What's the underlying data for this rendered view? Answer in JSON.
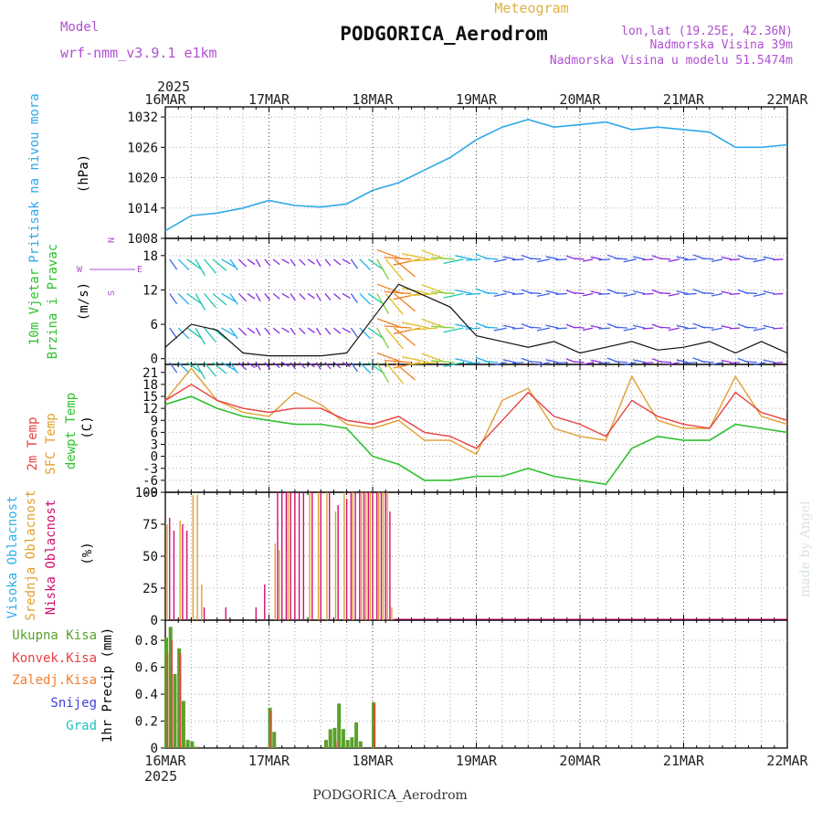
{
  "header": {
    "model_label": "Model",
    "model_name": "wrf-nmm_v3.9.1 e1km",
    "meteogram_label": "Meteogram",
    "station": "PODGORICA_Aerodrom",
    "lonlat": "lon,lat (19.25E, 42.36N)",
    "altitude": "Nadmorska Visina 39m",
    "model_altitude": "Nadmorska Visina u modelu 51.5474m",
    "footer_station": "PODGORICA_Aerodrom",
    "watermark": "made by Angel",
    "year": "2025"
  },
  "dates": [
    "16MAR",
    "17MAR",
    "18MAR",
    "19MAR",
    "20MAR",
    "21MAR",
    "22MAR"
  ],
  "colors": {
    "pressure": "#2fa8e8",
    "temp2m": "#e84040",
    "sfctemp": "#e0a030",
    "dewpt": "#30c030",
    "high_cloud": "#30b0e8",
    "mid_cloud": "#e0a030",
    "low_cloud": "#d01070",
    "precip_total": "#5aa02a",
    "precip_conv": "#e84040",
    "precip_frozen": "#f08030",
    "snow": "#4040e0",
    "grad": "#20c0c0",
    "title_purple": "#b050d0",
    "meteogram_gold": "#e0b040"
  },
  "panels": {
    "pressure": {
      "labels": [
        "Pritisak na nivou mora"
      ],
      "unit": "(hPa)"
    },
    "wind": {
      "labels": [
        "10m Vjetar",
        "Brzina i Pravac"
      ],
      "unit": "(m/s)",
      "compass": [
        "N",
        "E",
        "W",
        "S"
      ]
    },
    "temp": {
      "labels": [
        "2m Temp",
        "SFC Temp",
        "dewpt Temp"
      ],
      "unit": "(C)"
    },
    "cloud": {
      "labels": [
        "Visoka Oblacnost",
        "Srednja Oblacnost",
        "Niska Oblacnost"
      ],
      "unit": "(%)"
    },
    "precip": {
      "labels": [
        "Ukupna Kisa",
        "Konvek.Kisa",
        "Zaledj.Kisa",
        "Snijeg",
        "Grad"
      ],
      "unit": "1hr Precip (mm)"
    }
  },
  "chart_data": [
    {
      "type": "line",
      "title": "Pritisak na nivou mora",
      "ylabel": "(hPa)",
      "ylim": [
        1008,
        1034
      ],
      "yticks": [
        1008,
        1014,
        1020,
        1026,
        1032
      ],
      "x_hours": [
        0,
        6,
        12,
        18,
        24,
        30,
        36,
        42,
        48,
        54,
        60,
        66,
        72,
        78,
        84,
        90,
        96,
        102,
        108,
        114,
        120,
        126,
        132,
        138,
        144
      ],
      "series": [
        {
          "name": "Pritisak na nivou mora",
          "values": [
            1009.5,
            1012.5,
            1013,
            1014,
            1015.5,
            1014.5,
            1014.2,
            1014.8,
            1017.5,
            1019,
            1021.5,
            1024,
            1027.5,
            1030,
            1031.5,
            1030,
            1030.5,
            1031,
            1029.5,
            1030,
            1029.5,
            1029,
            1026,
            1026,
            1026.5
          ]
        }
      ]
    },
    {
      "type": "line",
      "title": "10m Vjetar Brzina i Pravac",
      "ylabel": "(m/s)",
      "ylim": [
        -1,
        21
      ],
      "yticks": [
        0,
        6,
        12,
        18
      ],
      "x_hours": [
        0,
        6,
        12,
        18,
        24,
        30,
        36,
        42,
        48,
        54,
        60,
        66,
        72,
        78,
        84,
        90,
        96,
        102,
        108,
        114,
        120,
        126,
        132,
        138,
        144
      ],
      "series": [
        {
          "name": "speed",
          "values": [
            2,
            6,
            5,
            1,
            0.5,
            0.5,
            0.5,
            1,
            7,
            13,
            11,
            9,
            4,
            3,
            2,
            3,
            1,
            2,
            3,
            1.5,
            2,
            3,
            1,
            3,
            1
          ]
        }
      ]
    },
    {
      "type": "line",
      "title": "2m Temp / SFC Temp / dewpt Temp",
      "ylabel": "(C)",
      "ylim": [
        -9,
        23
      ],
      "yticks": [
        -9,
        -6,
        -3,
        0,
        3,
        6,
        9,
        12,
        15,
        18,
        21
      ],
      "x_hours": [
        0,
        6,
        12,
        18,
        24,
        30,
        36,
        42,
        48,
        54,
        60,
        66,
        72,
        78,
        84,
        90,
        96,
        102,
        108,
        114,
        120,
        126,
        132,
        138,
        144
      ],
      "series": [
        {
          "name": "2m Temp",
          "values": [
            14,
            18,
            14,
            12,
            11,
            12,
            12,
            9,
            8,
            10,
            6,
            5,
            2,
            9,
            16,
            10,
            8,
            5,
            14,
            10,
            8,
            7,
            16,
            11,
            9
          ]
        },
        {
          "name": "SFC Temp",
          "values": [
            14,
            22,
            14,
            11,
            10,
            16,
            13,
            8,
            7,
            9,
            4,
            4,
            0.5,
            14,
            17,
            7,
            5,
            4,
            20,
            9,
            7,
            7,
            20,
            10,
            8
          ]
        },
        {
          "name": "dewpt Temp",
          "values": [
            13,
            15,
            12,
            10,
            9,
            8,
            8,
            7,
            0,
            -2,
            -6,
            -6,
            -5,
            -5,
            -3,
            -5,
            -6,
            -7,
            2,
            5,
            4,
            4,
            8,
            7,
            6
          ]
        }
      ]
    },
    {
      "type": "bar",
      "title": "Oblacnost",
      "ylabel": "(%)",
      "ylim": [
        0,
        100
      ],
      "yticks": [
        0,
        25,
        50,
        75,
        100
      ],
      "series": [
        {
          "name": "Niska Oblacnost",
          "x_hours": [
            1,
            2,
            4,
            5,
            9,
            14,
            21,
            23,
            26,
            27,
            28,
            29,
            30,
            31,
            32,
            34,
            36,
            38,
            40,
            42,
            43,
            44,
            45,
            46,
            47,
            48,
            49,
            50,
            51,
            52
          ],
          "values": [
            80,
            70,
            75,
            70,
            10,
            10,
            10,
            28,
            100,
            100,
            100,
            100,
            100,
            100,
            100,
            100,
            100,
            100,
            90,
            95,
            100,
            100,
            100,
            100,
            100,
            100,
            100,
            100,
            100,
            85
          ]
        },
        {
          "name": "Srednja Oblacnost",
          "x_hours": [
            0,
            3,
            6,
            7,
            8,
            25,
            26,
            28,
            33,
            35,
            37,
            39,
            41,
            43,
            45,
            46,
            47,
            49,
            50,
            51,
            52
          ],
          "values": [
            75,
            78,
            98,
            98,
            28,
            60,
            55,
            100,
            100,
            100,
            100,
            85,
            100,
            100,
            100,
            100,
            100,
            100,
            100,
            100,
            10
          ]
        },
        {
          "name": "Visoka Oblacnost",
          "x_hours": [],
          "values": []
        }
      ]
    },
    {
      "type": "bar",
      "title": "1hr Precip",
      "ylabel": "1hr Precip (mm)",
      "ylim": [
        0,
        0.95
      ],
      "yticks": [
        0,
        0.2,
        0.4,
        0.6,
        0.8
      ],
      "series": [
        {
          "name": "Ukupna Kisa",
          "x_hours": [
            0,
            1,
            2,
            3,
            4,
            5,
            6,
            7,
            24,
            25,
            37,
            38,
            39,
            40,
            41,
            42,
            43,
            44,
            45,
            48
          ],
          "values": [
            0.82,
            0.9,
            0.55,
            0.74,
            0.35,
            0.06,
            0.05,
            0.01,
            0.3,
            0.12,
            0.06,
            0.14,
            0.15,
            0.33,
            0.14,
            0.06,
            0.08,
            0.19,
            0.05,
            0.34
          ]
        },
        {
          "name": "Konvek.Kisa",
          "x_hours": [
            0,
            1,
            3,
            24,
            39,
            48
          ],
          "values": [
            0.7,
            0.8,
            0.7,
            0.28,
            0.05,
            0.33
          ]
        }
      ]
    }
  ]
}
